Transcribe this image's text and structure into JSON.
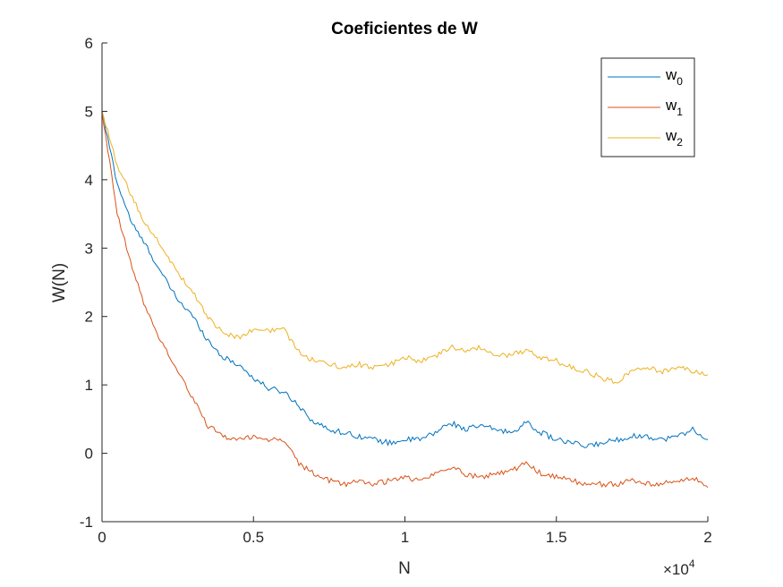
{
  "chart_data": {
    "type": "line",
    "title": "Coeficientes de W",
    "xlabel": "N",
    "ylabel": "W(N)",
    "xlim": [
      0,
      20000
    ],
    "ylim": [
      -1,
      6
    ],
    "x_tick_values": [
      0,
      5000,
      10000,
      15000,
      20000
    ],
    "x_tick_labels": [
      "0",
      "0.5",
      "1",
      "1.5",
      "2"
    ],
    "x_exponent_label": "×10",
    "x_exponent_power": "4",
    "y_tick_values": [
      -1,
      0,
      1,
      2,
      3,
      4,
      5,
      6
    ],
    "y_tick_labels": [
      "-1",
      "0",
      "1",
      "2",
      "3",
      "4",
      "5",
      "6"
    ],
    "grid": false,
    "legend_position": "top-right",
    "series": [
      {
        "name_base": "w",
        "name_sub": "0",
        "color": "#0072BD",
        "x": [
          0,
          500,
          1000,
          1500,
          2000,
          2500,
          3000,
          3500,
          4000,
          4500,
          5000,
          5500,
          6000,
          6500,
          7000,
          7500,
          8000,
          8500,
          9000,
          9500,
          10000,
          10500,
          11000,
          11500,
          12000,
          12500,
          13000,
          13500,
          14000,
          14500,
          15000,
          15500,
          16000,
          16500,
          17000,
          17500,
          18000,
          18500,
          19000,
          19500,
          20000
        ],
        "y": [
          5.0,
          3.95,
          3.35,
          3.0,
          2.6,
          2.25,
          2.0,
          1.65,
          1.4,
          1.3,
          1.1,
          0.95,
          0.9,
          0.7,
          0.45,
          0.35,
          0.3,
          0.25,
          0.2,
          0.15,
          0.2,
          0.2,
          0.3,
          0.45,
          0.35,
          0.4,
          0.35,
          0.3,
          0.45,
          0.3,
          0.2,
          0.15,
          0.1,
          0.15,
          0.2,
          0.25,
          0.25,
          0.2,
          0.25,
          0.35,
          0.2
        ]
      },
      {
        "name_base": "w",
        "name_sub": "1",
        "color": "#D95319",
        "x": [
          0,
          500,
          1000,
          1500,
          2000,
          2500,
          3000,
          3500,
          4000,
          4500,
          5000,
          5500,
          6000,
          6500,
          7000,
          7500,
          8000,
          8500,
          9000,
          9500,
          10000,
          10500,
          11000,
          11500,
          12000,
          12500,
          13000,
          13500,
          14000,
          14500,
          15000,
          15500,
          16000,
          16500,
          17000,
          17500,
          18000,
          18500,
          19000,
          19500,
          20000
        ],
        "y": [
          5.0,
          3.5,
          2.7,
          2.05,
          1.6,
          1.2,
          0.8,
          0.4,
          0.25,
          0.2,
          0.25,
          0.2,
          0.2,
          -0.15,
          -0.3,
          -0.4,
          -0.45,
          -0.4,
          -0.45,
          -0.4,
          -0.35,
          -0.4,
          -0.3,
          -0.2,
          -0.3,
          -0.35,
          -0.3,
          -0.25,
          -0.15,
          -0.3,
          -0.35,
          -0.4,
          -0.45,
          -0.45,
          -0.45,
          -0.4,
          -0.45,
          -0.45,
          -0.4,
          -0.35,
          -0.5
        ]
      },
      {
        "name_base": "w",
        "name_sub": "2",
        "color": "#EDB120",
        "x": [
          0,
          500,
          1000,
          1500,
          2000,
          2500,
          3000,
          3500,
          4000,
          4500,
          5000,
          5500,
          6000,
          6500,
          7000,
          7500,
          8000,
          8500,
          9000,
          9500,
          10000,
          10500,
          11000,
          11500,
          12000,
          12500,
          13000,
          13500,
          14000,
          14500,
          15000,
          15500,
          16000,
          16500,
          17000,
          17500,
          18000,
          18500,
          19000,
          19500,
          20000
        ],
        "y": [
          5.0,
          4.2,
          3.75,
          3.3,
          3.0,
          2.65,
          2.35,
          2.0,
          1.75,
          1.7,
          1.8,
          1.8,
          1.8,
          1.5,
          1.35,
          1.3,
          1.25,
          1.3,
          1.25,
          1.3,
          1.4,
          1.35,
          1.4,
          1.55,
          1.5,
          1.55,
          1.4,
          1.45,
          1.5,
          1.4,
          1.35,
          1.25,
          1.2,
          1.1,
          1.05,
          1.2,
          1.25,
          1.2,
          1.25,
          1.2,
          1.15
        ]
      }
    ]
  }
}
